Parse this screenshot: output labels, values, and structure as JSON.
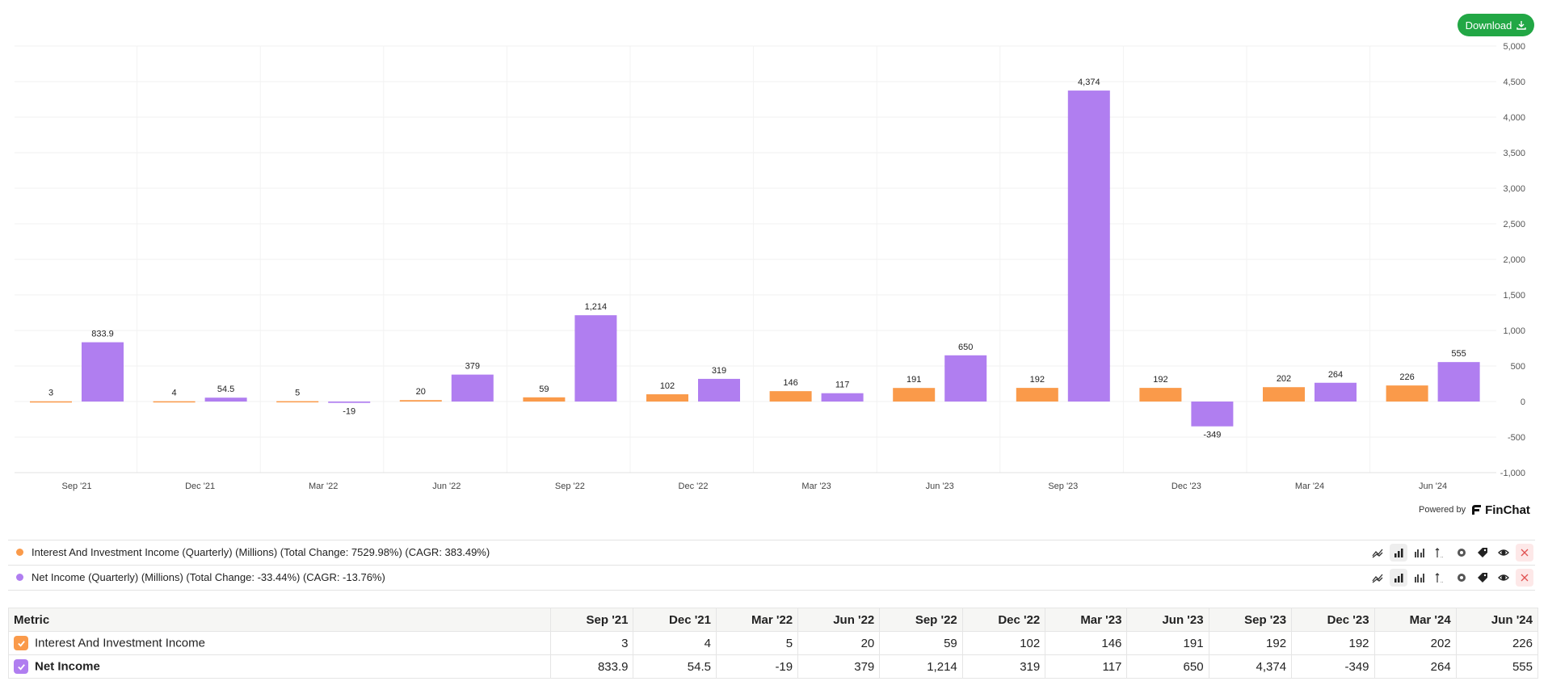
{
  "toolbar": {
    "download_label": "Download"
  },
  "colors": {
    "interest": "#fa9a4a",
    "net": "#b07ef0",
    "download": "#22a745"
  },
  "chart_data": {
    "type": "bar",
    "categories": [
      "Sep '21",
      "Dec '21",
      "Mar '22",
      "Jun '22",
      "Sep '22",
      "Dec '22",
      "Mar '23",
      "Jun '23",
      "Sep '23",
      "Dec '23",
      "Mar '24",
      "Jun '24"
    ],
    "series": [
      {
        "name": "Interest And Investment Income",
        "values": [
          3,
          4,
          5,
          20,
          59,
          102,
          146,
          191,
          192,
          192,
          202,
          226
        ],
        "labels": [
          "3",
          "4",
          "5",
          "20",
          "59",
          "102",
          "146",
          "191",
          "192",
          "192",
          "202",
          "226"
        ]
      },
      {
        "name": "Net Income",
        "values": [
          833.9,
          54.5,
          -19,
          379,
          1214,
          319,
          117,
          650,
          4374,
          -349,
          264,
          555
        ],
        "labels": [
          "833.9",
          "54.5",
          "-19",
          "379",
          "1,214",
          "319",
          "117",
          "650",
          "4,374",
          "-349",
          "264",
          "555"
        ]
      }
    ],
    "ylim": [
      -1000,
      5000
    ],
    "yticks": [
      "5,000",
      "4,500",
      "4,000",
      "3,500",
      "3,000",
      "2,500",
      "2,000",
      "1,500",
      "1,000",
      "500",
      "0",
      "-500",
      "-1,000"
    ],
    "xticks": [
      "Sep '21",
      "Dec '21",
      "Mar '22",
      "Jun '22",
      "Sep '22",
      "Dec '22",
      "Mar '23",
      "Jun '23",
      "Sep '23",
      "Dec '23",
      "Mar '24",
      "Jun '24"
    ],
    "grid": true,
    "y_axis_position": "right"
  },
  "powered_by": {
    "prefix": "Powered by",
    "brand": "FinChat"
  },
  "legend": {
    "items": [
      {
        "text": "Interest And Investment Income (Quarterly) (Millions) (Total Change: 7529.98%) (CAGR: 383.49%)"
      },
      {
        "text": "Net Income (Quarterly) (Millions) (Total Change: -33.44%) (CAGR: -13.76%)"
      }
    ],
    "tools": [
      "line-chart-icon",
      "bar-chart-icon",
      "grouped-bar-icon",
      "axis-toggle-icon",
      "gear-icon",
      "tag-icon",
      "eye-icon",
      "close-icon"
    ]
  },
  "table": {
    "metric_header": "Metric",
    "columns": [
      "Sep '21",
      "Dec '21",
      "Mar '22",
      "Jun '22",
      "Sep '22",
      "Dec '22",
      "Mar '23",
      "Jun '23",
      "Sep '23",
      "Dec '23",
      "Mar '24",
      "Jun '24"
    ],
    "rows": [
      {
        "name": "Interest And Investment Income",
        "cells": [
          "3",
          "4",
          "5",
          "20",
          "59",
          "102",
          "146",
          "191",
          "192",
          "192",
          "202",
          "226"
        ]
      },
      {
        "name": "Net Income",
        "cells": [
          "833.9",
          "54.5",
          "-19",
          "379",
          "1,214",
          "319",
          "117",
          "650",
          "4,374",
          "-349",
          "264",
          "555"
        ]
      }
    ]
  }
}
